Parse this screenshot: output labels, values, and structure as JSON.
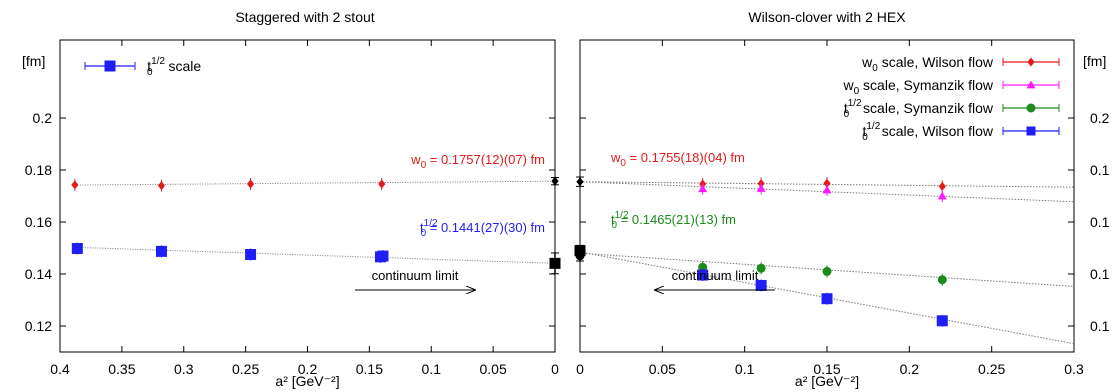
{
  "chart_data": [
    {
      "type": "scatter",
      "title": "Staggered with 2 stout",
      "xlabel": "a² [GeV⁻²]",
      "ylabel": "[fm]",
      "xlim": [
        0.4,
        0.0
      ],
      "ylim": [
        0.11,
        0.23
      ],
      "xticks": [
        "0.4",
        "0.35",
        "0.3",
        "0.25",
        "0.2",
        "0.15",
        "0.1",
        "0.05",
        "0"
      ],
      "yticks": [
        "0.12",
        "0.14",
        "0.16",
        "0.18",
        "0.2"
      ],
      "colors": {
        "w0": "#e31a1c",
        "t0": "#1f1ff5",
        "continuum": "#000000"
      },
      "legend": [
        {
          "name": "t₀¹ᐟ² scale",
          "color": "#1f1ff5",
          "marker": "square"
        }
      ],
      "series": [
        {
          "name": "",
          "color": "#e31a1c",
          "marker": "diamond",
          "x": [
            0.388,
            0.318,
            0.246,
            0.14
          ],
          "y": [
            0.1743,
            0.174,
            0.1746,
            0.1746
          ]
        },
        {
          "name": "t₀¹ᐟ² scale",
          "color": "#1f1ff5",
          "marker": "square",
          "x": [
            0.386,
            0.318,
            0.246,
            0.141,
            0.139
          ],
          "y": [
            0.1498,
            0.1487,
            0.1475,
            0.1466,
            0.1469
          ]
        }
      ],
      "fits": [
        {
          "color": "#7a7a7a",
          "x": [
            0.39,
            0.0
          ],
          "y": [
            0.1742,
            0.1757
          ]
        },
        {
          "color": "#7a7a7a",
          "x": [
            0.39,
            0.0
          ],
          "y": [
            0.1503,
            0.1441
          ]
        }
      ],
      "continuum_points": [
        {
          "color": "#000000",
          "marker": "diamond",
          "x": 0.0,
          "y": 0.1757,
          "err": 0.0014
        },
        {
          "color": "#000000",
          "marker": "square",
          "x": 0.0,
          "y": 0.1441,
          "err": 0.004
        }
      ],
      "annotations": [
        {
          "text_prefix": "w",
          "sub": "0",
          "text_suffix": " = 0.1757(12)(07) fm",
          "color": "#e31a1c"
        },
        {
          "text_prefix": "t",
          "sub": "0",
          "sup": "1/2",
          "text_suffix": " = 0.1441(27)(30) fm",
          "color": "#1f1ff5"
        },
        {
          "text": "continuum limit",
          "color": "#000000",
          "arrow": "right"
        }
      ]
    },
    {
      "type": "scatter",
      "title": "Wilson-clover with 2 HEX",
      "xlabel": "a² [GeV⁻²]",
      "ylabel": "[fm]",
      "xlim": [
        0.0,
        0.3
      ],
      "ylim": [
        0.11,
        0.23
      ],
      "xticks": [
        "0",
        "0.05",
        "0.1",
        "0.15",
        "0.2",
        "0.25",
        "0.3"
      ],
      "yticks": [
        "0.1",
        "0.1",
        "0.1",
        "0.1",
        "0.2"
      ],
      "colors": {
        "wilson_w0": "#e31a1c",
        "symanzik_w0": "#ff1aff",
        "symanzik_t0": "#1b8c1b",
        "wilson_t0": "#1f1ff5"
      },
      "legend": [
        {
          "prefix": "w",
          "sub": "0",
          "suffix": " scale, Wilson flow",
          "color": "#e31a1c",
          "marker": "diamond"
        },
        {
          "prefix": "w",
          "sub": "0",
          "suffix": " scale, Symanzik flow",
          "color": "#ff1aff",
          "marker": "triangle"
        },
        {
          "prefix": "t",
          "sub": "0",
          "sup": "1/2",
          "suffix": " scale, Symanzik flow",
          "color": "#1b8c1b",
          "marker": "circle"
        },
        {
          "prefix": "t",
          "sub": "0",
          "sup": "1/2",
          "suffix": " scale, Wilson flow",
          "color": "#1f1ff5",
          "marker": "square"
        }
      ],
      "series": [
        {
          "name": "w₀ scale, Wilson flow",
          "color": "#e31a1c",
          "marker": "diamond",
          "x": [
            0.0745,
            0.11,
            0.15,
            0.22
          ],
          "y": [
            0.1746,
            0.1748,
            0.1749,
            0.1737
          ]
        },
        {
          "name": "w₀ scale, Symanzik flow",
          "color": "#ff1aff",
          "marker": "triangle",
          "x": [
            0.0745,
            0.11,
            0.15,
            0.22
          ],
          "y": [
            0.1728,
            0.1729,
            0.1723,
            0.17
          ]
        },
        {
          "name": "t₀¹ᐟ² scale, Symanzik flow",
          "color": "#1b8c1b",
          "marker": "circle",
          "x": [
            0.0745,
            0.11,
            0.15,
            0.22
          ],
          "y": [
            0.1426,
            0.1422,
            0.141,
            0.1378
          ]
        },
        {
          "name": "t₀¹ᐟ² scale, Wilson flow",
          "color": "#1f1ff5",
          "marker": "square",
          "x": [
            0.0745,
            0.11,
            0.15,
            0.22
          ],
          "y": [
            0.1396,
            0.1356,
            0.1305,
            0.122
          ]
        }
      ],
      "fits": [
        {
          "color": "#7a7a7a",
          "x": [
            0.0,
            0.3
          ],
          "y": [
            0.1755,
            0.1734
          ]
        },
        {
          "color": "#7a7a7a",
          "x": [
            0.0,
            0.3
          ],
          "y": [
            0.1755,
            0.1678
          ]
        },
        {
          "color": "#7a7a7a",
          "x": [
            0.0,
            0.3
          ],
          "y": [
            0.148,
            0.1352
          ]
        },
        {
          "color": "#7a7a7a",
          "x": [
            0.0,
            0.3
          ],
          "y": [
            0.1485,
            0.1132
          ]
        }
      ],
      "continuum_points": [
        {
          "color": "#000000",
          "marker": "diamond",
          "x": 0.0,
          "y": 0.1755,
          "err": 0.0018
        },
        {
          "color": "#000000",
          "marker": "square",
          "x": 0.0,
          "y": 0.149,
          "err": 0.002
        },
        {
          "color": "#000000",
          "marker": "circle",
          "x": 0.0,
          "y": 0.147,
          "err": 0.002
        }
      ],
      "annotations": [
        {
          "text_prefix": "w",
          "sub": "0",
          "text_suffix": " = 0.1755(18)(04) fm",
          "color": "#e31a1c"
        },
        {
          "text_prefix": "t",
          "sub": "0",
          "sup": "1/2",
          "text_suffix": " = 0.1465(21)(13) fm",
          "color": "#1b8c1b"
        },
        {
          "text": "continuum limit",
          "color": "#000000",
          "arrow": "left"
        }
      ]
    }
  ]
}
